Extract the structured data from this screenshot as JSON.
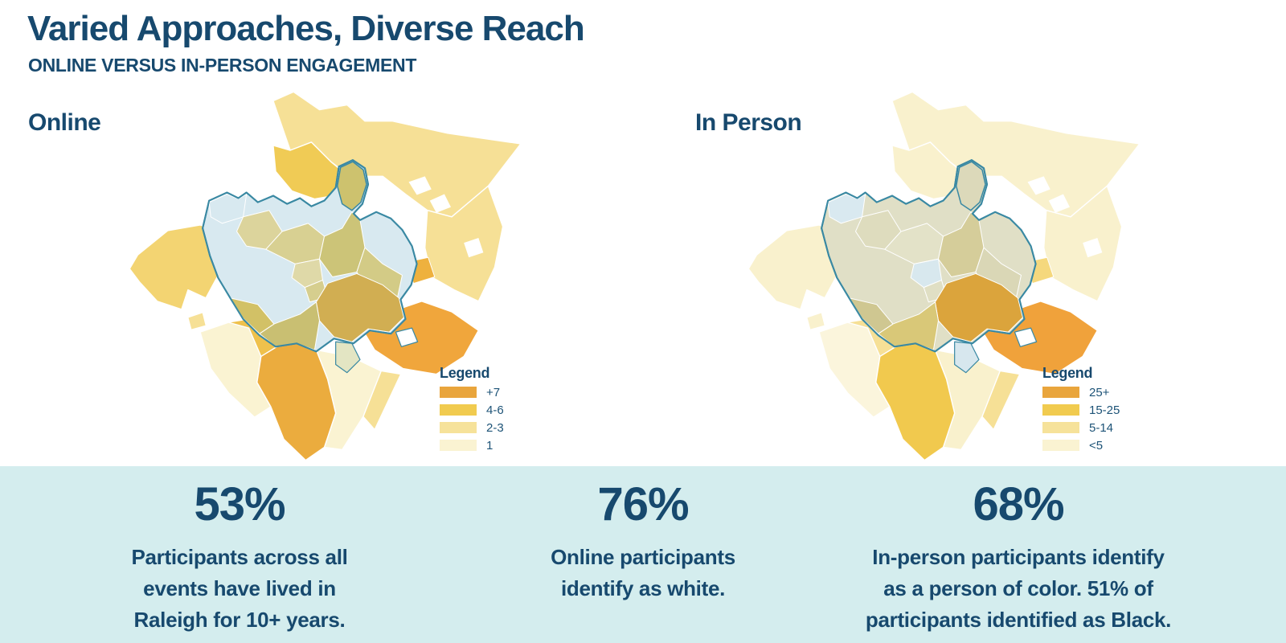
{
  "header": {
    "title": "Varied Approaches, Diverse Reach",
    "subtitle": "ONLINE VERSUS IN-PERSON ENGAGEMENT"
  },
  "colors": {
    "navy_text": "#17496E",
    "band_background": "#D4EDEE",
    "city_boundary_teal": "#3A89A3",
    "page_background": "#FFFFFF"
  },
  "maps": {
    "online": {
      "label": "Online",
      "legend": {
        "title": "Legend",
        "bins": [
          {
            "label": "+7",
            "color": "#E9A53C"
          },
          {
            "label": "4-6",
            "color": "#F1CB4F"
          },
          {
            "label": "2-3",
            "color": "#F6E29A"
          },
          {
            "label": "1",
            "color": "#FAF3D2"
          }
        ]
      }
    },
    "in_person": {
      "label": "In Person",
      "legend": {
        "title": "Legend",
        "bins": [
          {
            "label": "25+",
            "color": "#E9A53C"
          },
          {
            "label": "15-25",
            "color": "#F1CB4F"
          },
          {
            "label": "5-14",
            "color": "#F6E29A"
          },
          {
            "label": "<5",
            "color": "#FAF3D2"
          }
        ]
      }
    }
  },
  "region_fills": {
    "n_big": {
      "online": "#F6E096",
      "in_person": "#F9F1CD"
    },
    "nw_yellow": {
      "online": "#F0CB55",
      "in_person": "#F9F1CD"
    },
    "w_arm": {
      "online": "#F3D472",
      "in_person": "#F9F1CD"
    },
    "w_island": {
      "online": "#F6E096",
      "in_person": "#F9F1CD"
    },
    "e_side": {
      "online": "#F6E096",
      "in_person": "#F9F1CD"
    },
    "se_strip": {
      "online": "#F6E096",
      "in_person": "#F6E096"
    },
    "s_cream": {
      "online": "#FAF3D2",
      "in_person": "#F9F1CD"
    },
    "sw_triangle": {
      "online": "#FAF3D2",
      "in_person": "#FBF5DC"
    },
    "sw_yellow": {
      "online": "#EFC14C",
      "in_person": "#F6E096"
    },
    "s_orange_big": {
      "online": "#EBAC3E",
      "in_person": "#F1C94E"
    },
    "se_orange": {
      "online": "#F0A63C",
      "in_person": "#F0A23B"
    },
    "e_orange_patch": {
      "online": "#EEB13E",
      "in_person": "#F5D87D"
    },
    "hole_n1": {
      "online": "#FFFFFF",
      "in_person": "#FFFFFF"
    },
    "hole_n2": {
      "online": "#FFFFFF",
      "in_person": "#FFFFFF"
    },
    "hole_e1": {
      "online": "#FFFFFF",
      "in_person": "#FFFFFF"
    },
    "city": {
      "online": "#D8E9F0",
      "in_person": "#E0DFC6"
    },
    "ne_lobe": {
      "online": "#CDC26E",
      "in_person": "#DCD9BA"
    },
    "i0_nw": {
      "online": "#D8E9F0",
      "in_person": "#D9E9F0"
    },
    "i1": {
      "online": "#DCD49C",
      "in_person": "#DEDCBE"
    },
    "i2": {
      "online": "#D8D092",
      "in_person": "#E3E2C8"
    },
    "i3": {
      "online": "#CCC478",
      "in_person": "#D5CD9A"
    },
    "i4": {
      "online": "#D3CB86",
      "in_person": "#DAD7B6"
    },
    "i5": {
      "online": "#DFD9A8",
      "in_person": "#D8E8EE"
    },
    "i6": {
      "online": "#D6CE8E",
      "in_person": "#E0DFC4"
    },
    "i7_dark": {
      "online": "#D1AE52",
      "in_person": "#DBA43C"
    },
    "i8": {
      "online": "#C9BF72",
      "in_person": "#D9C878"
    },
    "i9": {
      "online": "#D2C166",
      "in_person": "#CFC791"
    },
    "i10_sage": {
      "online": "#E3E5C3",
      "in_person": "#D7E7EE"
    },
    "se_island": {
      "online": "#FFFFFF",
      "in_person": "#FFFFFF"
    }
  },
  "stats": [
    {
      "value": "53%",
      "lines": [
        "Participants across all",
        "events have lived in",
        "Raleigh for 10+ years."
      ]
    },
    {
      "value": "76%",
      "lines": [
        "Online participants",
        "identify as white."
      ]
    },
    {
      "value": "68%",
      "lines": [
        "In-person participants identify",
        "as a person of color. 51% of",
        "participants identified as Black."
      ]
    }
  ],
  "chart_data": [
    {
      "type": "choropleth",
      "title": "Online",
      "area": "Raleigh, NC area zip codes with city boundary outlined",
      "legend_title": "Legend",
      "bins": [
        {
          "label": "+7",
          "color": "#E9A53C"
        },
        {
          "label": "4-6",
          "color": "#F1CB4F"
        },
        {
          "label": "2-3",
          "color": "#F6E29A"
        },
        {
          "label": "1",
          "color": "#FAF3D2"
        }
      ],
      "pattern": "Highest online participation (+7) in south-central and southeast zip codes; moderate (4-6) in northwest, west and southwest; low (2-3) across the north sweep and east; far-south and southwest zips at 1; city core shown in pale blue (no shading) with olive/khaki mid-count tracts in the center."
    },
    {
      "type": "choropleth",
      "title": "In Person",
      "area": "Raleigh, NC area zip codes with city boundary outlined",
      "legend_title": "Legend",
      "bins": [
        {
          "label": "25+",
          "color": "#E9A53C"
        },
        {
          "label": "15-25",
          "color": "#F1CB4F"
        },
        {
          "label": "5-14",
          "color": "#F6E29A"
        },
        {
          "label": "<5",
          "color": "#FAF3D2"
        }
      ],
      "pattern": "Highest in-person participation (25+) concentrated in southeast zip codes (dark orange inside city edge and bright orange outside); 15-25 in the large south zip; 5-14 scattered small patches; most outer ring <5 (pale cream); city interior pale sage with small light-blue no-data patches."
    },
    {
      "type": "stats",
      "values": [
        {
          "value": "53%",
          "label": "Participants across all events have lived in Raleigh for 10+ years."
        },
        {
          "value": "76%",
          "label": "Online participants identify as white."
        },
        {
          "value": "68%",
          "label": "In-person participants identify as a person of color. 51% of participants identified as Black."
        }
      ]
    }
  ]
}
